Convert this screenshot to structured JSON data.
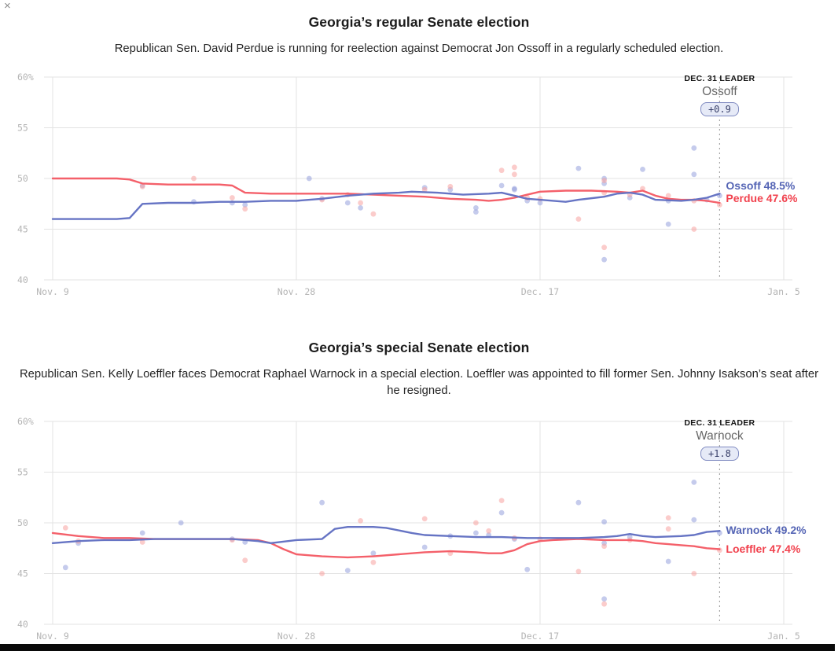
{
  "page": {
    "close_icon": "×"
  },
  "colors": {
    "dem_line": "#6674c4",
    "dem_text": "#5565b5",
    "dem_dot": "#96a1dc",
    "rep_line": "#f4606a",
    "rep_text": "#f1424e",
    "rep_dot": "#f7a3a1",
    "grid": "#e3e3e3",
    "tick_text": "#b4b4b4",
    "marker_line": "#a3a3a3"
  },
  "charts": [
    {
      "title": "Georgia’s regular Senate election",
      "subtitle": "Republican Sen. David Perdue is running for reelection against Democrat Jon Ossoff in a regularly scheduled election.",
      "leader": {
        "label": "DEC. 31 LEADER",
        "name": "Ossoff",
        "margin": "+0.9"
      },
      "end_labels": [
        {
          "text": "Ossoff 48.5%",
          "party": "dem",
          "value": 48.5
        },
        {
          "text": "Perdue 47.6%",
          "party": "rep",
          "value": 47.6
        }
      ]
    },
    {
      "title": "Georgia’s special Senate election",
      "subtitle": "Republican Sen. Kelly Loeffler faces Democrat Raphael Warnock in a special election. Loeffler was appointed to fill former Sen. Johnny Isakson’s seat after he resigned.",
      "leader": {
        "label": "DEC. 31 LEADER",
        "name": "Warnock",
        "margin": "+1.8"
      },
      "end_labels": [
        {
          "text": "Warnock 49.2%",
          "party": "dem",
          "value": 49.2
        },
        {
          "text": "Loeffler 47.4%",
          "party": "rep",
          "value": 47.4
        }
      ]
    }
  ],
  "chart_data": [
    {
      "type": "line",
      "title": "Georgia’s regular Senate election",
      "x_ticks": [
        {
          "label": "Nov. 9",
          "day": 0
        },
        {
          "label": "Nov. 28",
          "day": 19
        },
        {
          "label": "Dec. 17",
          "day": 38
        },
        {
          "label": "Jan. 5",
          "day": 57
        }
      ],
      "y_ticks": [
        {
          "label": "60%",
          "value": 60
        },
        {
          "label": "55",
          "value": 55
        },
        {
          "label": "50",
          "value": 50
        },
        {
          "label": "45",
          "value": 45
        },
        {
          "label": "40",
          "value": 40
        }
      ],
      "xlim_days": [
        0,
        57
      ],
      "ylim": [
        40,
        60
      ],
      "grid": true,
      "marker_day": 52,
      "series": [
        {
          "name": "Ossoff",
          "party": "dem",
          "final_value": 48.5,
          "points": [
            [
              0,
              46
            ],
            [
              5,
              46
            ],
            [
              6,
              46.1
            ],
            [
              7,
              47.5
            ],
            [
              9,
              47.6
            ],
            [
              11,
              47.6
            ],
            [
              13,
              47.7
            ],
            [
              15,
              47.7
            ],
            [
              17,
              47.8
            ],
            [
              19,
              47.8
            ],
            [
              21,
              48
            ],
            [
              23,
              48.3
            ],
            [
              25,
              48.5
            ],
            [
              27,
              48.6
            ],
            [
              28,
              48.7
            ],
            [
              30,
              48.6
            ],
            [
              32,
              48.4
            ],
            [
              34,
              48.5
            ],
            [
              35,
              48.6
            ],
            [
              36,
              48.3
            ],
            [
              37,
              48
            ],
            [
              38,
              47.9
            ],
            [
              40,
              47.7
            ],
            [
              41,
              47.9
            ],
            [
              43,
              48.2
            ],
            [
              44,
              48.5
            ],
            [
              45,
              48.6
            ],
            [
              46,
              48.4
            ],
            [
              47,
              47.9
            ],
            [
              49,
              47.8
            ],
            [
              50,
              47.9
            ],
            [
              51,
              48.1
            ],
            [
              52,
              48.5
            ]
          ]
        },
        {
          "name": "Perdue",
          "party": "rep",
          "final_value": 47.6,
          "points": [
            [
              0,
              50
            ],
            [
              5,
              50
            ],
            [
              6,
              49.9
            ],
            [
              7,
              49.5
            ],
            [
              9,
              49.4
            ],
            [
              11,
              49.4
            ],
            [
              13,
              49.4
            ],
            [
              14,
              49.3
            ],
            [
              15,
              48.6
            ],
            [
              17,
              48.5
            ],
            [
              19,
              48.5
            ],
            [
              21,
              48.5
            ],
            [
              23,
              48.5
            ],
            [
              25,
              48.4
            ],
            [
              27,
              48.3
            ],
            [
              29,
              48.2
            ],
            [
              31,
              48
            ],
            [
              33,
              47.9
            ],
            [
              34,
              47.8
            ],
            [
              35,
              47.9
            ],
            [
              36,
              48.1
            ],
            [
              37,
              48.4
            ],
            [
              38,
              48.7
            ],
            [
              40,
              48.8
            ],
            [
              42,
              48.8
            ],
            [
              44,
              48.7
            ],
            [
              45,
              48.6
            ],
            [
              46,
              48.8
            ],
            [
              47,
              48.3
            ],
            [
              48,
              48
            ],
            [
              49,
              47.9
            ],
            [
              50,
              47.9
            ],
            [
              51,
              47.8
            ],
            [
              52,
              47.6
            ]
          ]
        }
      ],
      "poll_dots": [
        {
          "party": "dem",
          "points": [
            [
              7,
              49.3
            ],
            [
              11,
              47.7
            ],
            [
              14,
              47.6
            ],
            [
              15,
              47.4
            ],
            [
              20,
              50
            ],
            [
              21,
              48
            ],
            [
              23,
              47.6
            ],
            [
              24,
              47.1
            ],
            [
              29,
              49.1
            ],
            [
              31,
              48.9
            ],
            [
              33,
              46.7
            ],
            [
              33,
              47.1
            ],
            [
              35,
              49.3
            ],
            [
              36,
              49
            ],
            [
              36,
              48.9
            ],
            [
              37,
              47.8
            ],
            [
              38,
              47.6
            ],
            [
              41,
              51
            ],
            [
              43,
              50
            ],
            [
              43,
              49.5
            ],
            [
              43,
              42
            ],
            [
              45,
              48.1
            ],
            [
              46,
              50.9
            ],
            [
              48,
              45.5
            ],
            [
              48,
              47.8
            ],
            [
              50,
              50.4
            ],
            [
              50,
              53
            ],
            [
              51,
              47.9
            ],
            [
              52,
              48.3
            ]
          ]
        },
        {
          "party": "rep",
          "points": [
            [
              7,
              49.2
            ],
            [
              11,
              50
            ],
            [
              14,
              48.1
            ],
            [
              15,
              47
            ],
            [
              21,
              47.9
            ],
            [
              23,
              48.4
            ],
            [
              24,
              47.6
            ],
            [
              25,
              46.5
            ],
            [
              29,
              48.9
            ],
            [
              31,
              49.2
            ],
            [
              35,
              50.8
            ],
            [
              36,
              51.1
            ],
            [
              36,
              50.4
            ],
            [
              37,
              48.1
            ],
            [
              38,
              48
            ],
            [
              41,
              46
            ],
            [
              43,
              49.8
            ],
            [
              43,
              48.6
            ],
            [
              43,
              43.2
            ],
            [
              45,
              48.4
            ],
            [
              46,
              49
            ],
            [
              48,
              48.3
            ],
            [
              50,
              47.8
            ],
            [
              50,
              45
            ],
            [
              52,
              47.4
            ]
          ]
        }
      ]
    },
    {
      "type": "line",
      "title": "Georgia’s special Senate election",
      "x_ticks": [
        {
          "label": "Nov. 9",
          "day": 0
        },
        {
          "label": "Nov. 28",
          "day": 19
        },
        {
          "label": "Dec. 17",
          "day": 38
        },
        {
          "label": "Jan. 5",
          "day": 57
        }
      ],
      "y_ticks": [
        {
          "label": "60%",
          "value": 60
        },
        {
          "label": "55",
          "value": 55
        },
        {
          "label": "50",
          "value": 50
        },
        {
          "label": "45",
          "value": 45
        },
        {
          "label": "40",
          "value": 40
        }
      ],
      "xlim_days": [
        0,
        57
      ],
      "ylim": [
        40,
        60
      ],
      "grid": true,
      "marker_day": 52,
      "series": [
        {
          "name": "Warnock",
          "party": "dem",
          "final_value": 49.2,
          "points": [
            [
              0,
              48
            ],
            [
              2,
              48.2
            ],
            [
              4,
              48.3
            ],
            [
              6,
              48.3
            ],
            [
              8,
              48.4
            ],
            [
              10,
              48.4
            ],
            [
              12,
              48.4
            ],
            [
              14,
              48.4
            ],
            [
              16,
              48.2
            ],
            [
              17,
              48
            ],
            [
              19,
              48.3
            ],
            [
              21,
              48.4
            ],
            [
              22,
              49.4
            ],
            [
              23,
              49.6
            ],
            [
              25,
              49.6
            ],
            [
              26,
              49.5
            ],
            [
              28,
              49
            ],
            [
              29,
              48.8
            ],
            [
              31,
              48.7
            ],
            [
              33,
              48.6
            ],
            [
              35,
              48.6
            ],
            [
              37,
              48.5
            ],
            [
              39,
              48.5
            ],
            [
              41,
              48.5
            ],
            [
              43,
              48.6
            ],
            [
              44,
              48.7
            ],
            [
              45,
              48.9
            ],
            [
              46,
              48.7
            ],
            [
              47,
              48.6
            ],
            [
              49,
              48.7
            ],
            [
              50,
              48.8
            ],
            [
              51,
              49.1
            ],
            [
              52,
              49.2
            ]
          ]
        },
        {
          "name": "Loeffler",
          "party": "rep",
          "final_value": 47.4,
          "points": [
            [
              0,
              49
            ],
            [
              2,
              48.7
            ],
            [
              4,
              48.5
            ],
            [
              6,
              48.5
            ],
            [
              8,
              48.4
            ],
            [
              10,
              48.4
            ],
            [
              12,
              48.4
            ],
            [
              14,
              48.4
            ],
            [
              16,
              48.3
            ],
            [
              17,
              48
            ],
            [
              18,
              47.4
            ],
            [
              19,
              46.9
            ],
            [
              21,
              46.7
            ],
            [
              23,
              46.6
            ],
            [
              25,
              46.7
            ],
            [
              27,
              46.9
            ],
            [
              29,
              47.1
            ],
            [
              31,
              47.2
            ],
            [
              33,
              47.1
            ],
            [
              34,
              47
            ],
            [
              35,
              47
            ],
            [
              36,
              47.3
            ],
            [
              37,
              47.9
            ],
            [
              38,
              48.2
            ],
            [
              39,
              48.3
            ],
            [
              41,
              48.4
            ],
            [
              43,
              48.3
            ],
            [
              45,
              48.3
            ],
            [
              46,
              48.2
            ],
            [
              47,
              48
            ],
            [
              48,
              47.9
            ],
            [
              49,
              47.8
            ],
            [
              50,
              47.7
            ],
            [
              51,
              47.5
            ],
            [
              52,
              47.4
            ]
          ]
        }
      ],
      "poll_dots": [
        {
          "party": "dem",
          "points": [
            [
              1,
              45.6
            ],
            [
              2,
              48
            ],
            [
              7,
              49
            ],
            [
              10,
              50
            ],
            [
              14,
              48.4
            ],
            [
              15,
              48.1
            ],
            [
              21,
              52
            ],
            [
              23,
              45.3
            ],
            [
              25,
              47
            ],
            [
              29,
              47.6
            ],
            [
              31,
              48.7
            ],
            [
              33,
              49
            ],
            [
              34,
              48.8
            ],
            [
              35,
              51
            ],
            [
              36,
              48.4
            ],
            [
              37,
              45.4
            ],
            [
              41,
              52
            ],
            [
              43,
              50.1
            ],
            [
              43,
              48
            ],
            [
              43,
              42.5
            ],
            [
              45,
              48.6
            ],
            [
              48,
              46.2
            ],
            [
              50,
              54
            ],
            [
              50,
              50.3
            ],
            [
              52,
              49
            ]
          ]
        },
        {
          "party": "rep",
          "points": [
            [
              1,
              49.5
            ],
            [
              2,
              48.2
            ],
            [
              7,
              48.1
            ],
            [
              14,
              48.3
            ],
            [
              15,
              46.3
            ],
            [
              21,
              45
            ],
            [
              24,
              50.2
            ],
            [
              25,
              46.1
            ],
            [
              29,
              50.4
            ],
            [
              31,
              47
            ],
            [
              33,
              50
            ],
            [
              34,
              49.2
            ],
            [
              35,
              52.2
            ],
            [
              36,
              48.5
            ],
            [
              38,
              48.4
            ],
            [
              41,
              45.2
            ],
            [
              43,
              47.7
            ],
            [
              43,
              42
            ],
            [
              45,
              48.3
            ],
            [
              48,
              50.5
            ],
            [
              48,
              49.4
            ],
            [
              50,
              45
            ],
            [
              52,
              47.3
            ]
          ]
        }
      ]
    }
  ]
}
